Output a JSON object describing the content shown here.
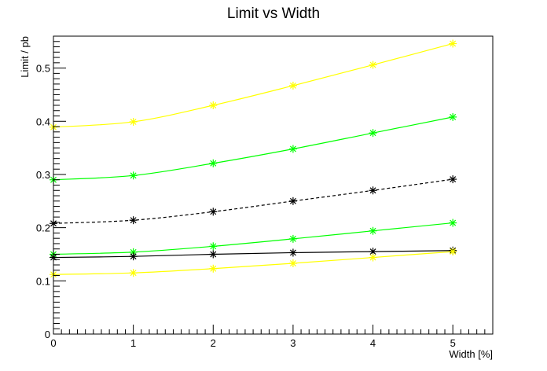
{
  "chart_data": {
    "type": "line",
    "title": "Limit vs Width",
    "xlabel": "Width [%]",
    "ylabel": "Limit / pb",
    "xlim": [
      0,
      5.5
    ],
    "ylim": [
      0,
      0.56
    ],
    "x": [
      0,
      1,
      2,
      3,
      4,
      5
    ],
    "x_ticks": [
      "0",
      "1",
      "2",
      "3",
      "4",
      "5"
    ],
    "y_ticks": [
      "0",
      "0.1",
      "0.2",
      "0.3",
      "0.4",
      "0.5"
    ],
    "grid": false,
    "legend": "none",
    "series": [
      {
        "values": [
          0.389,
          0.399,
          0.43,
          0.467,
          0.506,
          0.546
        ],
        "color": "#ffff00",
        "dashed": false
      },
      {
        "values": [
          0.29,
          0.298,
          0.321,
          0.348,
          0.378,
          0.408
        ],
        "color": "#00ff00",
        "dashed": false
      },
      {
        "values": [
          0.208,
          0.214,
          0.23,
          0.25,
          0.27,
          0.291
        ],
        "color": "#000000",
        "dashed": true
      },
      {
        "values": [
          0.15,
          0.154,
          0.165,
          0.179,
          0.194,
          0.209
        ],
        "color": "#00ff00",
        "dashed": false
      },
      {
        "values": [
          0.144,
          0.146,
          0.15,
          0.153,
          0.155,
          0.157
        ],
        "color": "#000000",
        "dashed": false
      },
      {
        "values": [
          0.112,
          0.115,
          0.123,
          0.133,
          0.144,
          0.155
        ],
        "color": "#ffff00",
        "dashed": false
      }
    ]
  }
}
